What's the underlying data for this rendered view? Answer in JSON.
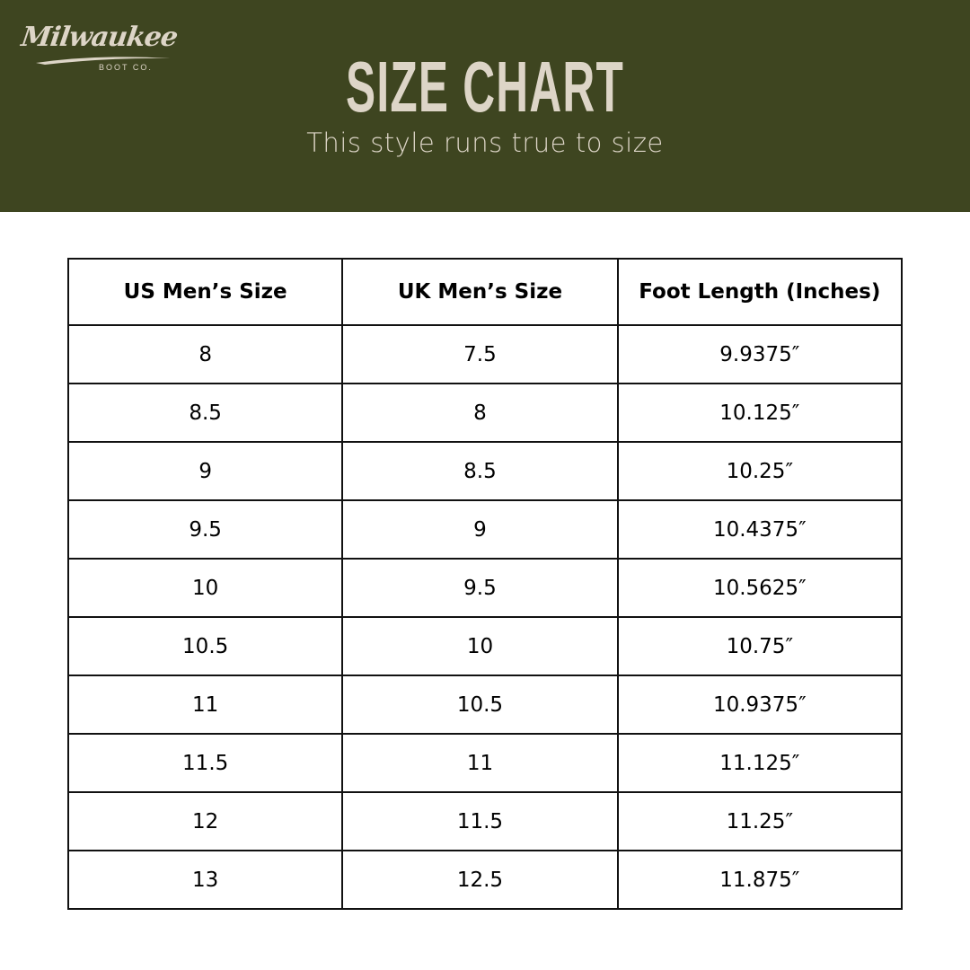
{
  "brand": {
    "logo_script": "Milwaukee",
    "logo_sub": "BOOT CO."
  },
  "colors": {
    "banner": "#3e4520",
    "banner_text": "#ddd5c7"
  },
  "header": {
    "title": "SIZE CHART",
    "subtitle": "This style runs true to size"
  },
  "table": {
    "columns": [
      "US Men’s Size",
      "UK Men’s Size",
      "Foot Length (Inches)"
    ],
    "rows": [
      [
        "8",
        "7.5",
        "9.9375″"
      ],
      [
        "8.5",
        "8",
        "10.125″"
      ],
      [
        "9",
        "8.5",
        "10.25″"
      ],
      [
        "9.5",
        "9",
        "10.4375″"
      ],
      [
        "10",
        "9.5",
        "10.5625″"
      ],
      [
        "10.5",
        "10",
        "10.75″"
      ],
      [
        "11",
        "10.5",
        "10.9375″"
      ],
      [
        "11.5",
        "11",
        "11.125″"
      ],
      [
        "12",
        "11.5",
        "11.25″"
      ],
      [
        "13",
        "12.5",
        "11.875″"
      ]
    ]
  }
}
